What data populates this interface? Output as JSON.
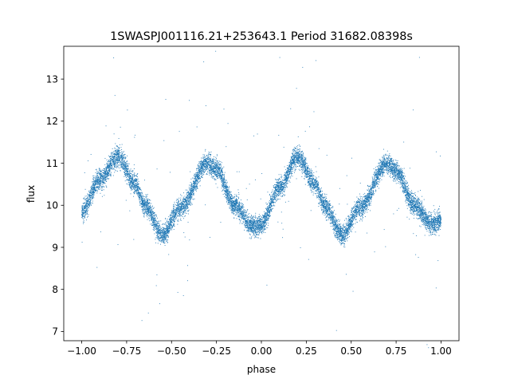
{
  "chart_data": {
    "type": "scatter",
    "title": "1SWASPJ001116.21+253643.1 Period 31682.08398s",
    "xlabel": "phase",
    "ylabel": "flux",
    "xlim": [
      -1.1,
      1.1
    ],
    "ylim": [
      6.78,
      13.78
    ],
    "x_ticks": [
      -1.0,
      -0.75,
      -0.5,
      -0.25,
      0.0,
      0.25,
      0.5,
      0.75,
      1.0
    ],
    "x_tick_labels": [
      "−1.00",
      "−0.75",
      "−0.50",
      "−0.25",
      "0.00",
      "0.25",
      "0.50",
      "0.75",
      "1.00"
    ],
    "y_ticks": [
      7,
      8,
      9,
      10,
      11,
      12,
      13
    ],
    "y_tick_labels": [
      "7",
      "8",
      "9",
      "10",
      "11",
      "12",
      "13"
    ],
    "grid": false,
    "point_color": "#1f77b4",
    "sampled_curve": {
      "x": [
        -1.0,
        -0.9,
        -0.8,
        -0.7,
        -0.65,
        -0.55,
        -0.45,
        -0.3,
        -0.25,
        -0.15,
        -0.05,
        0.0,
        0.1,
        0.2,
        0.3,
        0.35,
        0.45,
        0.55,
        0.7,
        0.75,
        0.85,
        0.95,
        1.0
      ],
      "y": [
        9.85,
        10.6,
        11.15,
        10.5,
        10.0,
        9.3,
        9.95,
        11.0,
        10.85,
        10.0,
        9.5,
        9.55,
        10.4,
        11.15,
        10.5,
        10.0,
        9.3,
        9.95,
        11.0,
        10.8,
        10.0,
        9.55,
        9.65
      ]
    },
    "n_points_approx": 12000,
    "band_scatter_flux": 0.12,
    "outlier_fraction": 0.015
  }
}
